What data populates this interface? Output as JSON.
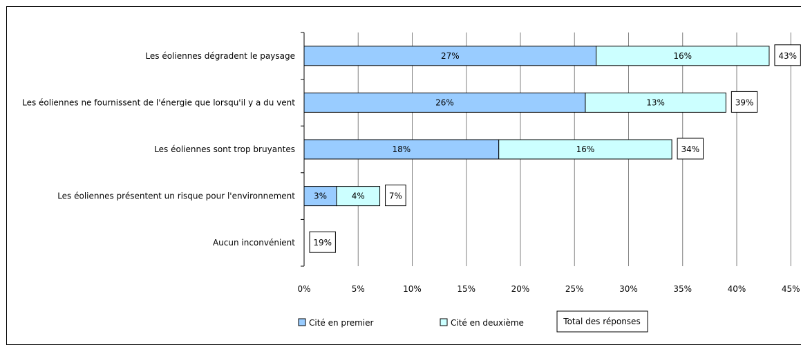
{
  "chart_data": {
    "type": "bar",
    "orientation": "horizontal",
    "stacked": true,
    "categories": [
      "Les éoliennes dégradent le paysage",
      "Les éoliennes ne fournissent de l'énergie que lorsqu'il y a du vent",
      "Les éoliennes sont trop bruyantes",
      "Les éoliennes présentent un risque pour l'environnement",
      "Aucun inconvénient"
    ],
    "series": [
      {
        "name": "Cité en premier",
        "values": [
          27,
          26,
          18,
          3,
          null
        ],
        "labels": [
          "27%",
          "26%",
          "18%",
          "3%",
          ""
        ],
        "color": "#99ccff"
      },
      {
        "name": "Cité en deuxième",
        "values": [
          16,
          13,
          16,
          4,
          null
        ],
        "labels": [
          "16%",
          "13%",
          "16%",
          "4%",
          ""
        ],
        "color": "#ccffff"
      }
    ],
    "totals": {
      "name": "Total des réponses",
      "values": [
        43,
        39,
        34,
        7,
        19
      ],
      "labels": [
        "43%",
        "39%",
        "34%",
        "7%",
        "19%"
      ]
    },
    "xlim": [
      0,
      45
    ],
    "xticks": [
      0,
      5,
      10,
      15,
      20,
      25,
      30,
      35,
      40,
      45
    ],
    "xtick_labels": [
      "0%",
      "5%",
      "10%",
      "15%",
      "20%",
      "25%",
      "30%",
      "35%",
      "40%",
      "45%"
    ],
    "grid": "vertical",
    "legend_position": "bottom"
  },
  "colors": {
    "bar_border": "#000000",
    "grid": "#808080"
  }
}
